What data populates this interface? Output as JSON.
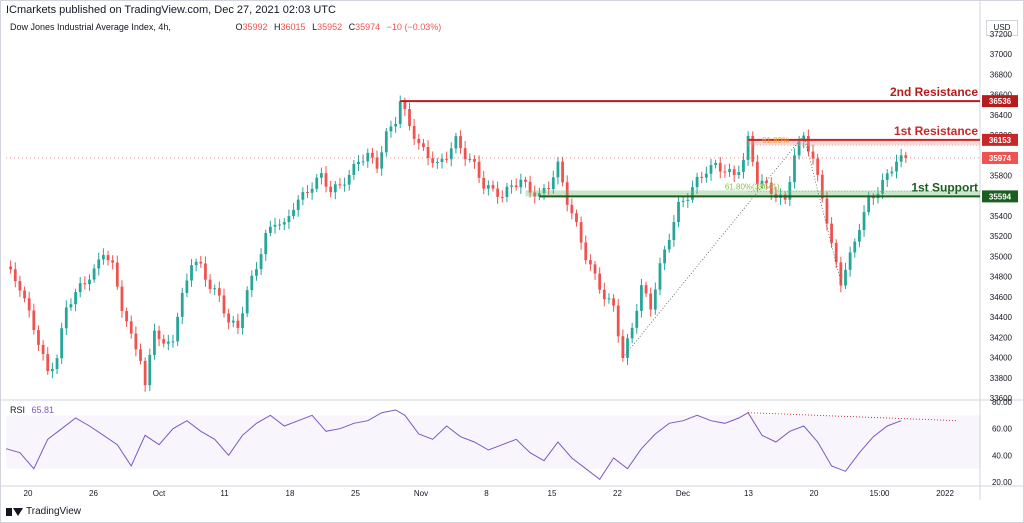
{
  "header": {
    "published": "ICmarkets published on TradingView.com, Dec 27, 2021 02:03 UTC"
  },
  "legend": {
    "symbol": "Dow Jones Industrial Average Index, 4h,",
    "o_label": "O",
    "o_value": "35992",
    "h_label": "H",
    "h_value": "36015",
    "l_label": "L",
    "l_value": "35952",
    "c_label": "C",
    "c_value": "35974",
    "change": "−10 (−0.03%)"
  },
  "currency": "USD",
  "rsi": {
    "name": "RSI",
    "value": "65.81"
  },
  "footer": {
    "brand": "TradingView"
  },
  "chart_data": {
    "type": "candlestick",
    "title": "Dow Jones Industrial Average Index, 4h",
    "price_axis": {
      "ticks": [
        "37200",
        "37000",
        "36800",
        "36600",
        "36400",
        "36200",
        "36000",
        "35800",
        "35600",
        "35400",
        "35200",
        "35000",
        "34800",
        "34600",
        "34400",
        "34200",
        "34000",
        "33800",
        "33600"
      ],
      "ylim": [
        33600,
        37200
      ]
    },
    "rsi_axis": {
      "ticks": [
        "80.00",
        "60.00",
        "40.00",
        "20.00"
      ],
      "ylim": [
        20,
        80
      ]
    },
    "x_ticks": [
      "20",
      "26",
      "Oct",
      "11",
      "18",
      "25",
      "Nov",
      "8",
      "15",
      "22",
      "Dec",
      "13",
      "20",
      "15:00",
      "2022"
    ],
    "levels": [
      {
        "name": "2nd Resistance",
        "price": 36536,
        "label": "36536",
        "color": "#b71c1c"
      },
      {
        "name": "1st Resistance",
        "price": 36153,
        "label": "36153",
        "color": "#c62828"
      },
      {
        "name": "1st Support",
        "price": 35594,
        "label": "35594",
        "color": "#1b5e20"
      }
    ],
    "last_price": {
      "label": "35974",
      "price": 35974,
      "color": "#ef5350"
    },
    "fib_labels": [
      "61.80%",
      "61.80%(35641)"
    ],
    "price_path": [
      [
        0,
        34900
      ],
      [
        3,
        34700
      ],
      [
        6,
        34300
      ],
      [
        9,
        33850
      ],
      [
        11,
        34000
      ],
      [
        13,
        34500
      ],
      [
        16,
        34700
      ],
      [
        19,
        34850
      ],
      [
        21,
        35050
      ],
      [
        23,
        34900
      ],
      [
        25,
        34500
      ],
      [
        27,
        34200
      ],
      [
        29,
        34000
      ],
      [
        30,
        33700
      ],
      [
        32,
        34300
      ],
      [
        34,
        34100
      ],
      [
        36,
        34200
      ],
      [
        38,
        34600
      ],
      [
        40,
        34950
      ],
      [
        42,
        34900
      ],
      [
        44,
        34700
      ],
      [
        46,
        34600
      ],
      [
        48,
        34350
      ],
      [
        50,
        34300
      ],
      [
        52,
        34650
      ],
      [
        54,
        34900
      ],
      [
        56,
        35200
      ],
      [
        58,
        35350
      ],
      [
        60,
        35300
      ],
      [
        62,
        35500
      ],
      [
        64,
        35600
      ],
      [
        66,
        35700
      ],
      [
        68,
        35800
      ],
      [
        70,
        35650
      ],
      [
        72,
        35700
      ],
      [
        74,
        35800
      ],
      [
        76,
        35950
      ],
      [
        78,
        36000
      ],
      [
        80,
        35900
      ],
      [
        82,
        36200
      ],
      [
        84,
        36350
      ],
      [
        85,
        36536
      ],
      [
        87,
        36300
      ],
      [
        89,
        36100
      ],
      [
        91,
        36000
      ],
      [
        93,
        35900
      ],
      [
        95,
        36000
      ],
      [
        97,
        36150
      ],
      [
        99,
        36000
      ],
      [
        101,
        35900
      ],
      [
        103,
        35700
      ],
      [
        105,
        35650
      ],
      [
        107,
        35600
      ],
      [
        109,
        35700
      ],
      [
        111,
        35750
      ],
      [
        113,
        35650
      ],
      [
        115,
        35600
      ],
      [
        117,
        35700
      ],
      [
        119,
        35900
      ],
      [
        121,
        35550
      ],
      [
        123,
        35300
      ],
      [
        125,
        35000
      ],
      [
        127,
        34800
      ],
      [
        129,
        34600
      ],
      [
        131,
        34500
      ],
      [
        133,
        34000
      ],
      [
        135,
        34300
      ],
      [
        137,
        34700
      ],
      [
        139,
        34500
      ],
      [
        141,
        34900
      ],
      [
        143,
        35200
      ],
      [
        145,
        35500
      ],
      [
        147,
        35600
      ],
      [
        149,
        35750
      ],
      [
        151,
        35850
      ],
      [
        153,
        35900
      ],
      [
        155,
        35850
      ],
      [
        157,
        35800
      ],
      [
        159,
        35950
      ],
      [
        160,
        36153
      ],
      [
        162,
        35750
      ],
      [
        164,
        35700
      ],
      [
        166,
        35600
      ],
      [
        168,
        35550
      ],
      [
        170,
        36000
      ],
      [
        172,
        36200
      ],
      [
        174,
        35950
      ],
      [
        176,
        35600
      ],
      [
        178,
        35100
      ],
      [
        180,
        34750
      ],
      [
        182,
        35000
      ],
      [
        184,
        35300
      ],
      [
        186,
        35550
      ],
      [
        188,
        35650
      ],
      [
        190,
        35800
      ],
      [
        192,
        35950
      ],
      [
        194,
        35974
      ]
    ],
    "rsi_path": [
      [
        0,
        45
      ],
      [
        3,
        42
      ],
      [
        6,
        30
      ],
      [
        9,
        52
      ],
      [
        12,
        60
      ],
      [
        15,
        68
      ],
      [
        18,
        62
      ],
      [
        21,
        55
      ],
      [
        24,
        48
      ],
      [
        27,
        32
      ],
      [
        30,
        55
      ],
      [
        33,
        48
      ],
      [
        36,
        60
      ],
      [
        39,
        66
      ],
      [
        42,
        58
      ],
      [
        45,
        52
      ],
      [
        48,
        40
      ],
      [
        51,
        55
      ],
      [
        54,
        64
      ],
      [
        57,
        70
      ],
      [
        60,
        62
      ],
      [
        63,
        66
      ],
      [
        66,
        70
      ],
      [
        69,
        58
      ],
      [
        72,
        60
      ],
      [
        75,
        64
      ],
      [
        78,
        66
      ],
      [
        81,
        72
      ],
      [
        84,
        74
      ],
      [
        86,
        70
      ],
      [
        89,
        56
      ],
      [
        92,
        52
      ],
      [
        95,
        62
      ],
      [
        98,
        54
      ],
      [
        101,
        50
      ],
      [
        104,
        44
      ],
      [
        107,
        48
      ],
      [
        110,
        52
      ],
      [
        113,
        42
      ],
      [
        116,
        36
      ],
      [
        119,
        50
      ],
      [
        122,
        38
      ],
      [
        125,
        30
      ],
      [
        128,
        22
      ],
      [
        131,
        38
      ],
      [
        134,
        30
      ],
      [
        137,
        45
      ],
      [
        140,
        56
      ],
      [
        143,
        64
      ],
      [
        146,
        66
      ],
      [
        149,
        70
      ],
      [
        152,
        66
      ],
      [
        155,
        64
      ],
      [
        158,
        68
      ],
      [
        160,
        72
      ],
      [
        163,
        55
      ],
      [
        166,
        50
      ],
      [
        169,
        58
      ],
      [
        172,
        62
      ],
      [
        175,
        50
      ],
      [
        178,
        32
      ],
      [
        181,
        28
      ],
      [
        184,
        42
      ],
      [
        187,
        54
      ],
      [
        190,
        62
      ],
      [
        193,
        66
      ]
    ]
  }
}
